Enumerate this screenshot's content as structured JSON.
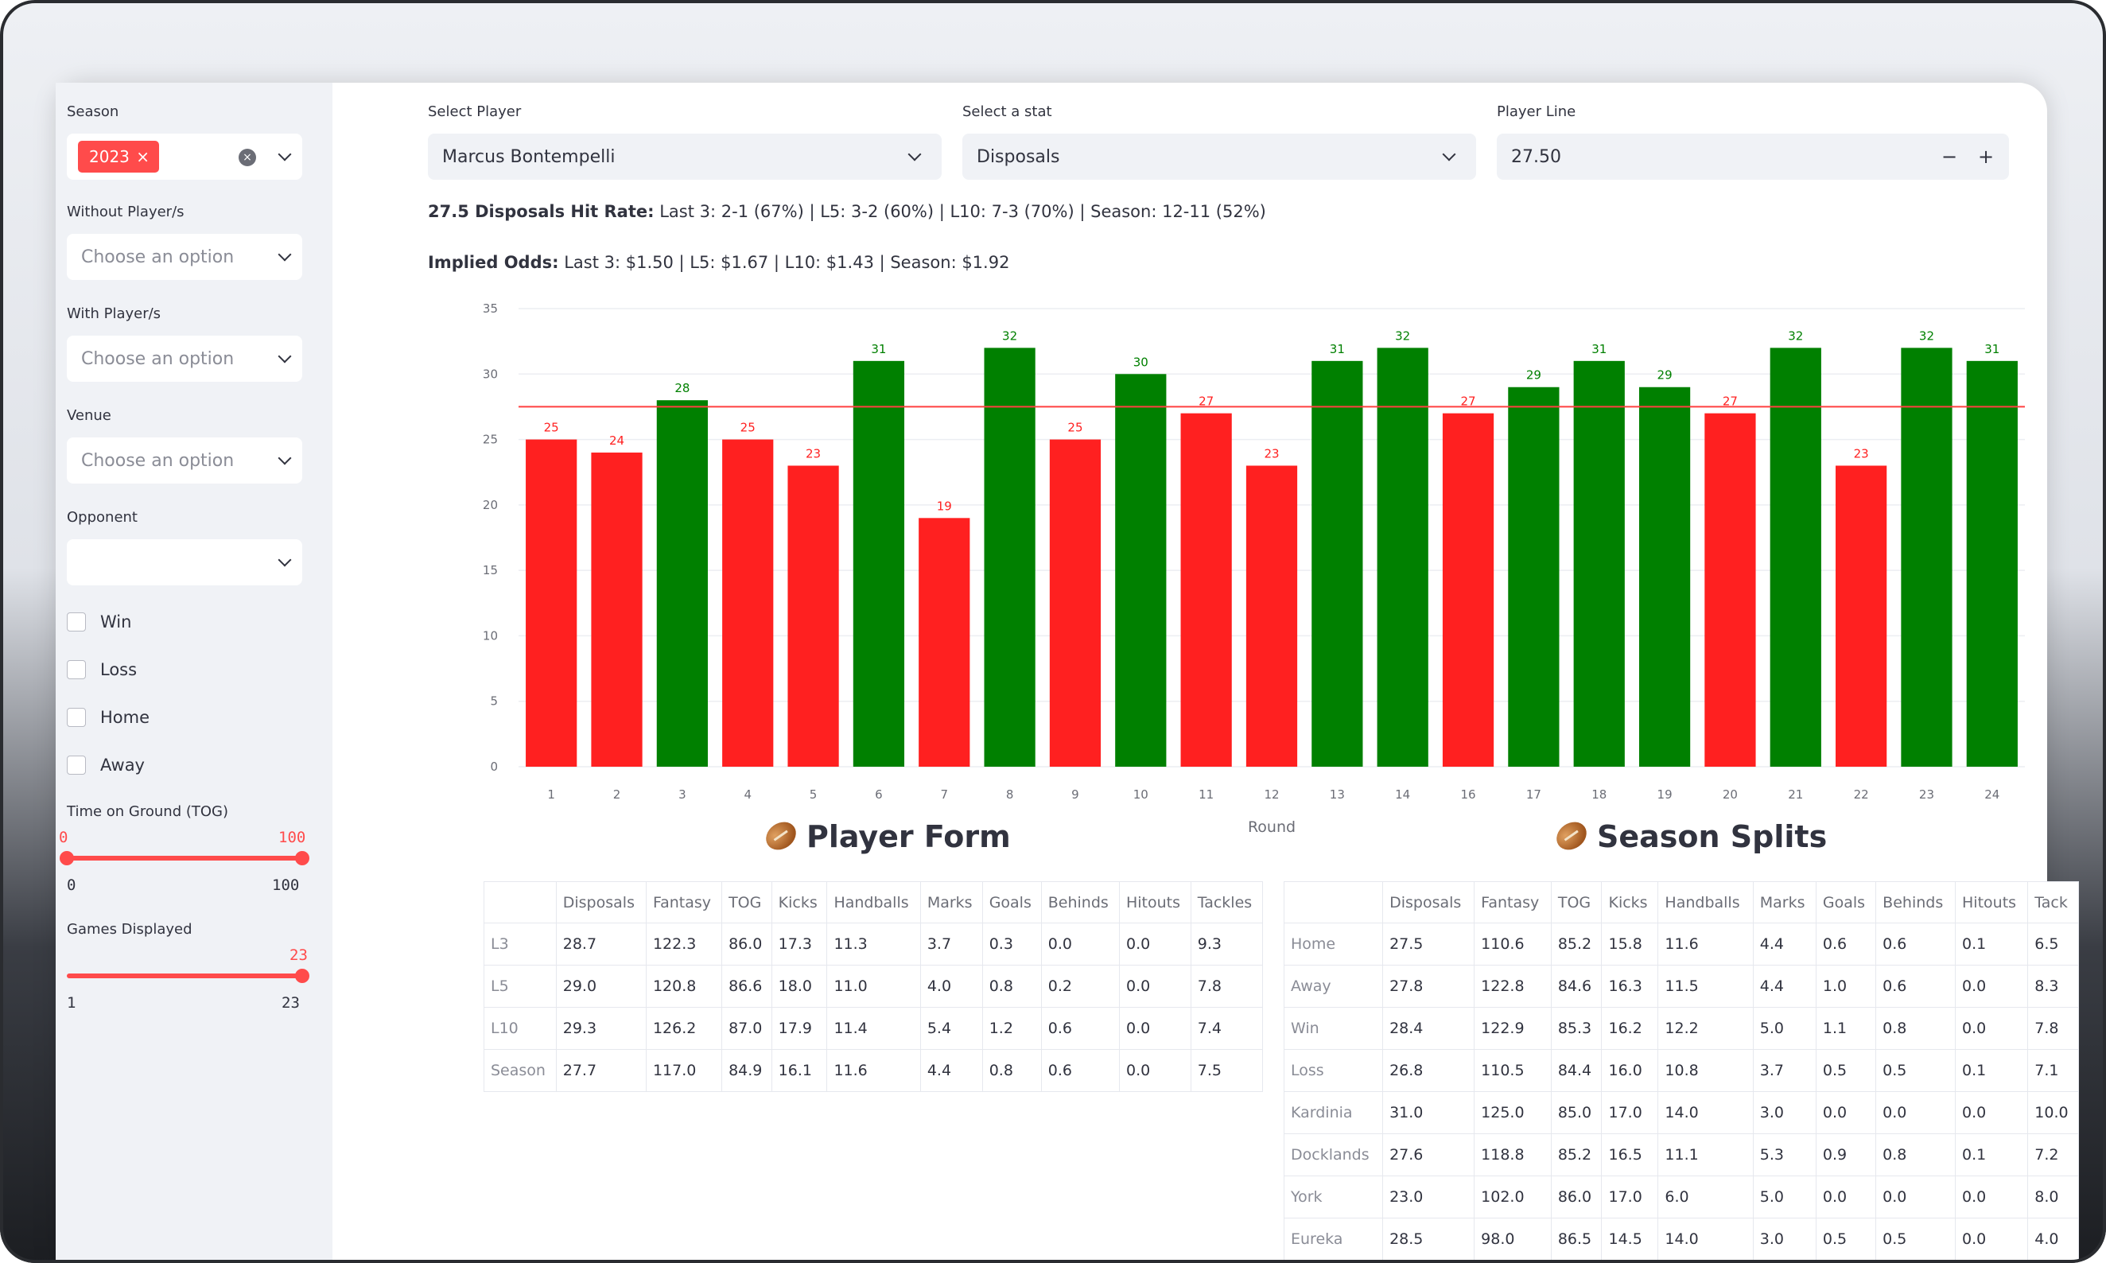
{
  "sidebar": {
    "season": {
      "label": "Season",
      "tag": "2023",
      "tag_close": "×"
    },
    "without_players": {
      "label": "Without Player/s",
      "placeholder": "Choose an option"
    },
    "with_players": {
      "label": "With Player/s",
      "placeholder": "Choose an option"
    },
    "venue": {
      "label": "Venue",
      "placeholder": "Choose an option"
    },
    "opponent": {
      "label": "Opponent",
      "placeholder": ""
    },
    "checkboxes": [
      "Win",
      "Loss",
      "Home",
      "Away"
    ],
    "tog": {
      "label": "Time on Ground (TOG)",
      "low_value": "0",
      "high_value": "100",
      "min": "0",
      "max": "100",
      "low_fraction": 0.0,
      "high_fraction": 1.0
    },
    "games": {
      "label": "Games Displayed",
      "value": "23",
      "min": "1",
      "max": "23",
      "fraction": 1.0
    }
  },
  "controls": {
    "player": {
      "label": "Select Player",
      "value": "Marcus Bontempelli"
    },
    "stat": {
      "label": "Select a stat",
      "value": "Disposals"
    },
    "line": {
      "label": "Player Line",
      "value": "27.50",
      "minus": "−",
      "plus": "+"
    }
  },
  "summary": {
    "hit_rate_bold": "27.5 Disposals Hit Rate:",
    "hit_rate_text": " Last 3: 2-1 (67%) | L5: 3-2 (60%) | L10: 7-3 (70%) | Season: 12-11 (52%)",
    "odds_bold": "Implied Odds:",
    "odds_text": " Last 3: $1.50 | L5: $1.67 | L10: $1.43 | Season: $1.92"
  },
  "chart_data": {
    "type": "bar",
    "categories": [
      "1",
      "2",
      "3",
      "4",
      "5",
      "6",
      "7",
      "8",
      "9",
      "10",
      "11",
      "12",
      "13",
      "14",
      "16",
      "17",
      "18",
      "19",
      "20",
      "21",
      "22",
      "23",
      "24"
    ],
    "values": [
      25,
      24,
      28,
      25,
      23,
      31,
      19,
      32,
      25,
      30,
      27,
      23,
      31,
      32,
      27,
      29,
      31,
      29,
      27,
      32,
      23,
      32,
      31
    ],
    "line_value": 27.5,
    "xlabel": "Round",
    "ylabel": "",
    "ylim": [
      0,
      35
    ],
    "yticks": [
      0,
      5,
      10,
      15,
      20,
      25,
      30,
      35
    ],
    "colors": {
      "over": "#008000",
      "under": "#ff2020",
      "line": "#ff4040"
    },
    "grid": true
  },
  "player_form": {
    "title": "Player Form",
    "columns": [
      "",
      "Disposals",
      "Fantasy",
      "TOG",
      "Kicks",
      "Handballs",
      "Marks",
      "Goals",
      "Behinds",
      "Hitouts",
      "Tackles"
    ],
    "rows": [
      [
        "L3",
        "28.7",
        "122.3",
        "86.0",
        "17.3",
        "11.3",
        "3.7",
        "0.3",
        "0.0",
        "0.0",
        "9.3"
      ],
      [
        "L5",
        "29.0",
        "120.8",
        "86.6",
        "18.0",
        "11.0",
        "4.0",
        "0.8",
        "0.2",
        "0.0",
        "7.8"
      ],
      [
        "L10",
        "29.3",
        "126.2",
        "87.0",
        "17.9",
        "11.4",
        "5.4",
        "1.2",
        "0.6",
        "0.0",
        "7.4"
      ],
      [
        "Season",
        "27.7",
        "117.0",
        "84.9",
        "16.1",
        "11.6",
        "4.4",
        "0.8",
        "0.6",
        "0.0",
        "7.5"
      ]
    ]
  },
  "season_splits": {
    "title": "Season Splits",
    "columns": [
      "",
      "Disposals",
      "Fantasy",
      "TOG",
      "Kicks",
      "Handballs",
      "Marks",
      "Goals",
      "Behinds",
      "Hitouts",
      "Tack"
    ],
    "rows": [
      [
        "Home",
        "27.5",
        "110.6",
        "85.2",
        "15.8",
        "11.6",
        "4.4",
        "0.6",
        "0.6",
        "0.1",
        "6.5"
      ],
      [
        "Away",
        "27.8",
        "122.8",
        "84.6",
        "16.3",
        "11.5",
        "4.4",
        "1.0",
        "0.6",
        "0.0",
        "8.3"
      ],
      [
        "Win",
        "28.4",
        "122.9",
        "85.3",
        "16.2",
        "12.2",
        "5.0",
        "1.1",
        "0.8",
        "0.0",
        "7.8"
      ],
      [
        "Loss",
        "26.8",
        "110.5",
        "84.4",
        "16.0",
        "10.8",
        "3.7",
        "0.5",
        "0.5",
        "0.1",
        "7.1"
      ],
      [
        "Kardinia",
        "31.0",
        "125.0",
        "85.0",
        "17.0",
        "14.0",
        "3.0",
        "0.0",
        "0.0",
        "0.0",
        "10.0"
      ],
      [
        "Docklands",
        "27.6",
        "118.8",
        "85.2",
        "16.5",
        "11.1",
        "5.3",
        "0.9",
        "0.8",
        "0.1",
        "7.2"
      ],
      [
        "York",
        "23.0",
        "102.0",
        "86.0",
        "17.0",
        "6.0",
        "5.0",
        "0.0",
        "0.0",
        "0.0",
        "8.0"
      ],
      [
        "Eureka",
        "28.5",
        "98.0",
        "86.5",
        "14.5",
        "14.0",
        "3.0",
        "0.5",
        "0.5",
        "0.0",
        "4.0"
      ]
    ]
  }
}
